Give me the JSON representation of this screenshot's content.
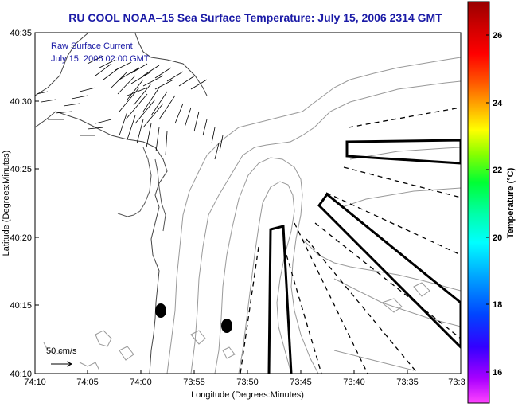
{
  "title": "RU COOL  NOAA–15  Sea Surface Temperature:  July 15, 2006 2314 GMT",
  "map": {
    "xlabel": "Longitude (Degrees:Minutes)",
    "ylabel": "Latitude (Degrees:Minutes)",
    "x_ticks": [
      "74:10",
      "74:05",
      "74:00",
      "73:55",
      "73:50",
      "73:45",
      "73:40",
      "73:35",
      "73:3"
    ],
    "y_ticks": [
      "40:35",
      "40:30",
      "40:25",
      "40:20",
      "40:15",
      "40:10"
    ],
    "legend_line1": "Raw Surface Current",
    "legend_line2": "July 15, 2006 02:00 GMT",
    "scale_label": "50 cm/s"
  },
  "colorbar": {
    "label": "Temperature (°C)",
    "ticks": [
      "26",
      "24",
      "22",
      "20",
      "18",
      "16"
    ],
    "colors": [
      "#ff44ff",
      "#aa00ff",
      "#3300ff",
      "#0044ff",
      "#00aaff",
      "#00ffff",
      "#00ffaa",
      "#00ff33",
      "#88ff00",
      "#ffff00",
      "#ffaa00",
      "#ff5500",
      "#ff0000",
      "#cc0000",
      "#990000"
    ]
  },
  "stations": [
    "station-a",
    "station-b"
  ]
}
